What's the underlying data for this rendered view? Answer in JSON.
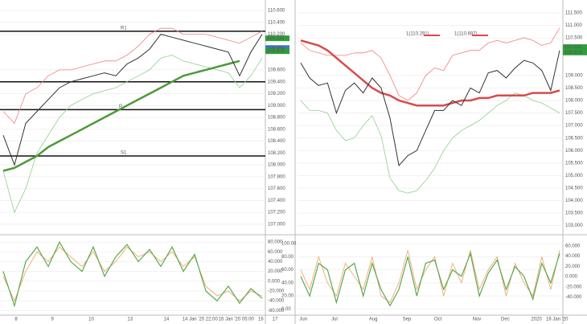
{
  "chart_data": [
    {
      "type": "line",
      "ylim": [
        106.85,
        110.75
      ],
      "yticks": [
        {
          "value": 110.6,
          "label": "110.600"
        },
        {
          "value": 110.4,
          "label": "110.400"
        },
        {
          "value": 110.2,
          "label": "110.200"
        },
        {
          "value": 109.6,
          "label": "109.600"
        },
        {
          "value": 109.4,
          "label": "109.400"
        },
        {
          "value": 109.2,
          "label": "109.200"
        },
        {
          "value": 109,
          "label": "109.000"
        },
        {
          "value": 108.8,
          "label": "108.800"
        },
        {
          "value": 108.6,
          "label": "108.600"
        },
        {
          "value": 108.4,
          "label": "108.400"
        },
        {
          "value": 108.2,
          "label": "108.200"
        },
        {
          "value": 108,
          "label": "108.000"
        },
        {
          "value": 107.8,
          "label": "107.800"
        },
        {
          "value": 107.6,
          "label": "107.600"
        },
        {
          "value": 107.4,
          "label": "107.400"
        },
        {
          "value": 107.2,
          "label": "107.200"
        },
        {
          "value": 107,
          "label": "107.000"
        }
      ],
      "levels": [
        {
          "label": "R1",
          "value": 110.25
        },
        {
          "value": 109.4
        },
        {
          "label": "P",
          "value": 108.93
        },
        {
          "label": "S1",
          "value": 108.15
        }
      ],
      "price_labels": [
        {
          "value": 110.132,
          "color": "#2e9e3a"
        },
        {
          "value": 109.968,
          "color": "#3a7fc4"
        },
        {
          "value": 109.915,
          "color": "#2e9e3a"
        }
      ],
      "series": [
        {
          "color": "#f08080",
          "width": 0.8,
          "values": [
            108.9,
            108.7,
            109.2,
            109.3,
            109.5,
            109.6,
            109.6,
            109.65,
            109.7,
            109.75,
            109.75,
            109.85,
            110.0,
            110.2,
            110.3,
            110.3,
            110.2,
            110.2,
            110.2,
            110.15,
            110.1,
            110.05,
            110.15,
            110.25
          ]
        },
        {
          "color": "#8fcf8f",
          "width": 0.8,
          "values": [
            107.9,
            107.2,
            107.6,
            108.2,
            108.5,
            108.8,
            109.0,
            109.1,
            109.2,
            109.25,
            109.3,
            109.4,
            109.5,
            109.6,
            109.8,
            109.85,
            109.75,
            109.7,
            109.65,
            109.6,
            109.55,
            109.3,
            109.5,
            109.8
          ]
        },
        {
          "color": "#4c9a3a",
          "width": 2.5,
          "values": [
            107.9,
            107.95,
            108.05,
            108.15,
            108.3,
            108.4,
            108.5,
            108.6,
            108.7,
            108.8,
            108.9,
            109.0,
            109.1,
            109.2,
            109.3,
            109.4,
            109.5,
            109.55,
            109.6,
            109.65,
            109.7,
            109.75,
            null,
            null
          ]
        },
        {
          "color": "#333333",
          "width": 1,
          "values": [
            108.5,
            108.0,
            108.7,
            108.9,
            109.1,
            109.3,
            109.4,
            109.45,
            109.5,
            109.55,
            109.5,
            109.7,
            109.8,
            109.95,
            110.2,
            110.15,
            110.1,
            110.05,
            110.0,
            109.95,
            109.9,
            109.5,
            109.9,
            110.2
          ]
        }
      ]
    },
    {
      "type": "line",
      "ylim": [
        -66,
        90
      ],
      "yticks": [
        {
          "value": 80,
          "label": "80.000"
        },
        {
          "value": 60,
          "label": "60.000"
        },
        {
          "value": 40,
          "label": "40.000"
        },
        {
          "value": 20,
          "label": "20.000"
        },
        {
          "value": 0,
          "label": "0.000"
        },
        {
          "value": -20,
          "label": "-20.000"
        },
        {
          "value": -40,
          "label": "-40.000"
        },
        {
          "value": -60,
          "label": "-60.000"
        }
      ],
      "time_labels": [
        "8",
        "9",
        "10",
        "13",
        "14",
        "14 Jan '20 22:00",
        "16 Jan '20 05:00",
        "16",
        "17"
      ],
      "series": [
        {
          "color": "#f0a060",
          "width": 0.8,
          "values": [
            10,
            -40,
            20,
            60,
            40,
            70,
            50,
            30,
            60,
            20,
            40,
            70,
            50,
            60,
            40,
            60,
            30,
            50,
            -10,
            -30,
            -20,
            -40,
            -20,
            -30
          ]
        },
        {
          "color": "#5aaa50",
          "width": 1.2,
          "values": [
            20,
            -50,
            40,
            70,
            30,
            80,
            40,
            20,
            70,
            10,
            50,
            75,
            40,
            65,
            30,
            70,
            20,
            55,
            -20,
            -40,
            -10,
            -45,
            -15,
            -35
          ]
        }
      ]
    },
    {
      "type": "line",
      "ylim": [
        102.7,
        111.95
      ],
      "yticks": [
        {
          "value": 111.5,
          "label": "111.500"
        },
        {
          "value": 111,
          "label": "111.000"
        },
        {
          "value": 110.5,
          "label": "110.500"
        },
        {
          "value": 109,
          "label": "109.000"
        },
        {
          "value": 108.5,
          "label": "108.500"
        },
        {
          "value": 108,
          "label": "108.000"
        },
        {
          "value": 107.5,
          "label": "107.500"
        },
        {
          "value": 107,
          "label": "107.000"
        },
        {
          "value": 106.5,
          "label": "106.500"
        },
        {
          "value": 106,
          "label": "106.000"
        },
        {
          "value": 105.5,
          "label": "105.500"
        },
        {
          "value": 105,
          "label": "105.000"
        },
        {
          "value": 104.5,
          "label": "104.500"
        },
        {
          "value": 104,
          "label": "104.000"
        },
        {
          "value": 103.5,
          "label": "103.500"
        },
        {
          "value": 103,
          "label": "103.000"
        }
      ],
      "annotations": [
        "1(110.291)",
        "1(110.697)"
      ],
      "price_labels": [
        {
          "value": 110.132,
          "color": "#2e9e3a"
        },
        {
          "value": 109.919,
          "color": "#2e9e3a"
        }
      ],
      "series": [
        {
          "color": "#f08080",
          "width": 0.8,
          "values": [
            110.3,
            110.0,
            109.9,
            109.8,
            109.8,
            109.8,
            109.9,
            109.9,
            110.0,
            109.7,
            109.0,
            108.2,
            108.0,
            108.3,
            109.0,
            109.3,
            109.2,
            109.8,
            109.9,
            110.0,
            110.0,
            110.3,
            110.4,
            110.3,
            110.4,
            110.5,
            110.4,
            110.2,
            110.3,
            110.9
          ]
        },
        {
          "color": "#8fcf8f",
          "width": 0.8,
          "values": [
            108.0,
            107.6,
            107.6,
            107.5,
            106.8,
            106.4,
            106.5,
            107.0,
            107.4,
            106.6,
            104.9,
            104.4,
            104.3,
            104.4,
            104.8,
            105.3,
            106.0,
            106.5,
            106.8,
            107.0,
            107.2,
            107.5,
            107.8,
            108.0,
            108.3,
            108.2,
            108.0,
            107.9,
            107.7,
            107.5
          ]
        },
        {
          "color": "#d94a4a",
          "width": 2.5,
          "values": [
            110.4,
            110.3,
            110.2,
            110.0,
            109.7,
            109.4,
            109.1,
            108.8,
            108.5,
            108.3,
            108.2,
            108.0,
            107.9,
            107.8,
            107.8,
            107.8,
            107.8,
            107.9,
            108.0,
            108.0,
            108.1,
            108.1,
            108.2,
            108.2,
            108.2,
            108.2,
            108.3,
            108.3,
            108.3,
            108.4
          ]
        },
        {
          "color": "#333333",
          "width": 1,
          "values": [
            109.5,
            108.9,
            108.6,
            108.7,
            107.5,
            108.4,
            108.7,
            108.3,
            108.9,
            108.5,
            107.3,
            105.4,
            105.8,
            106.0,
            106.8,
            107.6,
            107.6,
            108.0,
            107.8,
            108.5,
            108.3,
            109.1,
            109.2,
            108.9,
            109.3,
            109.6,
            109.5,
            109.2,
            108.4,
            110.0
          ]
        }
      ]
    },
    {
      "type": "line",
      "ylim": [
        -7,
        110
      ],
      "yticks": [
        {
          "value": 100,
          "label": "100.00"
        },
        {
          "value": 80,
          "label": "80.00"
        },
        {
          "value": 60,
          "label": "60.00"
        },
        {
          "value": 40,
          "label": "40.00"
        },
        {
          "value": 20,
          "label": "20.00"
        },
        {
          "value": 0,
          "label": "0.00"
        }
      ],
      "y2lim": [
        -72,
        77
      ],
      "y2ticks": [
        {
          "value": 60,
          "label": "60.000"
        },
        {
          "value": 40,
          "label": "40.000"
        },
        {
          "value": 20,
          "label": "20.000"
        },
        {
          "value": 0,
          "label": "0.000"
        },
        {
          "value": -20,
          "label": "-20.000"
        },
        {
          "value": -40,
          "label": "-40.000"
        }
      ],
      "time_labels": [
        "Jun",
        "Jul",
        "Aug",
        "Sep",
        "Oct",
        "Nov",
        "Dec",
        "2020",
        "16 Jan '20"
      ],
      "series": [
        {
          "color": "#f0a060",
          "width": 0.8,
          "values": [
            60,
            30,
            80,
            40,
            20,
            70,
            50,
            30,
            80,
            20,
            10,
            40,
            90,
            30,
            60,
            80,
            20,
            70,
            40,
            90,
            30,
            60,
            80,
            20,
            70,
            40,
            20,
            80,
            30,
            90
          ]
        },
        {
          "color": "#5aaa50",
          "width": 1.2,
          "values": [
            50,
            20,
            70,
            60,
            10,
            60,
            70,
            20,
            70,
            30,
            5,
            30,
            80,
            20,
            70,
            75,
            30,
            60,
            50,
            85,
            20,
            55,
            75,
            30,
            65,
            50,
            15,
            70,
            40,
            85
          ]
        }
      ]
    }
  ]
}
